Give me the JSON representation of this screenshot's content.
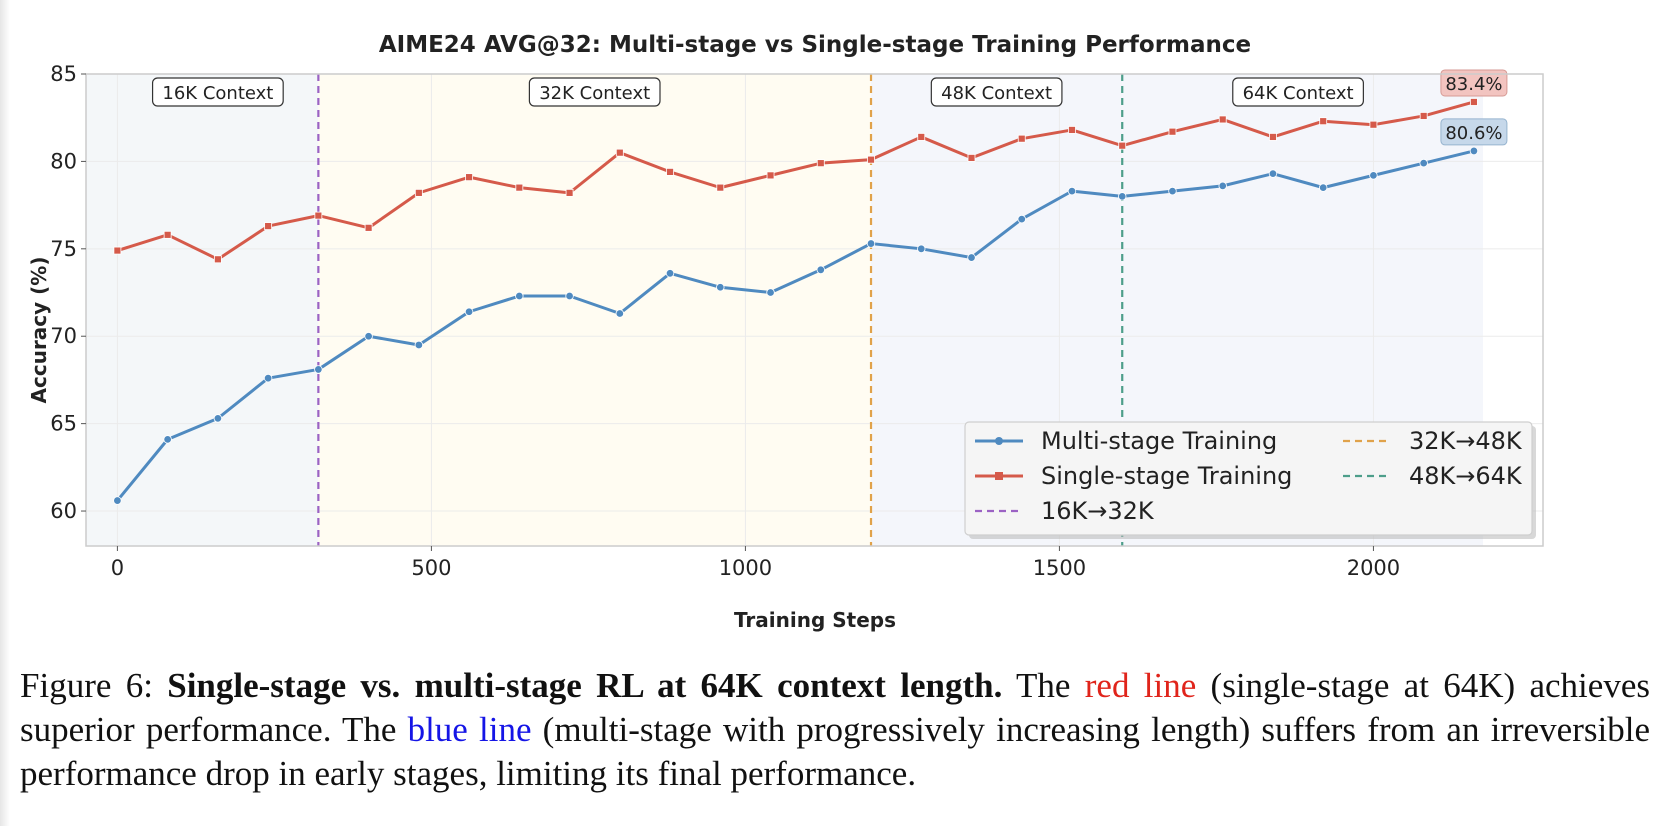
{
  "chart_data": {
    "type": "line",
    "title": "AIME24 AVG@32: Multi-stage vs Single-stage Training Performance",
    "xlabel": "Training Steps",
    "ylabel": "Accuracy (%)",
    "xlim": [
      -50,
      2270
    ],
    "ylim": [
      58,
      85
    ],
    "xticks": [
      0,
      500,
      1000,
      1500,
      2000
    ],
    "yticks": [
      60,
      65,
      70,
      75,
      80,
      85
    ],
    "grid": true,
    "legend_position": "lower-right",
    "x": [
      0,
      80,
      160,
      240,
      320,
      400,
      480,
      560,
      640,
      720,
      800,
      880,
      960,
      1040,
      1120,
      1200,
      1280,
      1360,
      1440,
      1520,
      1600,
      1680,
      1760,
      1840,
      1920,
      2000,
      2080,
      2160
    ],
    "series": [
      {
        "name": "Multi-stage Training",
        "color": "#4f8ac0",
        "marker": "circle",
        "values": [
          60.6,
          64.1,
          65.3,
          67.6,
          68.1,
          70.0,
          69.5,
          71.4,
          72.3,
          72.3,
          71.3,
          73.6,
          72.8,
          72.5,
          73.8,
          75.3,
          75.0,
          74.5,
          76.7,
          78.3,
          78.0,
          78.3,
          78.6,
          79.3,
          78.5,
          79.2,
          79.9,
          80.6
        ]
      },
      {
        "name": "Single-stage Training",
        "color": "#d55a4a",
        "marker": "square",
        "values": [
          74.9,
          75.8,
          74.4,
          76.3,
          76.9,
          76.2,
          78.2,
          79.1,
          78.5,
          78.2,
          80.5,
          79.4,
          78.5,
          79.2,
          79.9,
          80.1,
          81.4,
          80.2,
          81.3,
          81.8,
          80.9,
          81.7,
          82.4,
          81.4,
          82.3,
          82.1,
          82.6,
          83.4
        ]
      }
    ],
    "transitions": [
      {
        "name": "16K→32K",
        "x": 320,
        "color": "#9b62c4"
      },
      {
        "name": "32K→48K",
        "x": 1200,
        "color": "#e0a24a"
      },
      {
        "name": "48K→64K",
        "x": 1600,
        "color": "#4d9e8a"
      }
    ],
    "stages": [
      {
        "label": "16K Context",
        "x0": -50,
        "x1": 320,
        "fill": "#f4f7f9",
        "label_x": 160
      },
      {
        "label": "32K Context",
        "x0": 320,
        "x1": 1200,
        "fill": "#fffcf2",
        "label_x": 760
      },
      {
        "label": "48K Context",
        "x0": 1200,
        "x1": 1600,
        "fill": "#f4f6fb",
        "label_x": 1400
      },
      {
        "label": "64K Context",
        "x0": 1600,
        "x1": 2160,
        "fill": "#f4f6fb",
        "label_x": 1880
      }
    ],
    "end_labels": [
      {
        "text": "83.4%",
        "series": 1,
        "fill": "#f2c4c0",
        "stroke": "#d69a94"
      },
      {
        "text": "80.6%",
        "series": 0,
        "fill": "#c6d8ea",
        "stroke": "#97b4cf"
      }
    ]
  },
  "caption": {
    "prefix": "Figure 6: ",
    "bold": "Single-stage vs. multi-stage RL at 64K context length.",
    "part1": " The ",
    "red": "red line",
    "part2": " (single-stage at 64K) achieves superior performance. The ",
    "blue": "blue line",
    "part3": " (multi-stage with progressively increasing length) suffers from an irreversible performance drop in early stages, limiting its final performance."
  }
}
